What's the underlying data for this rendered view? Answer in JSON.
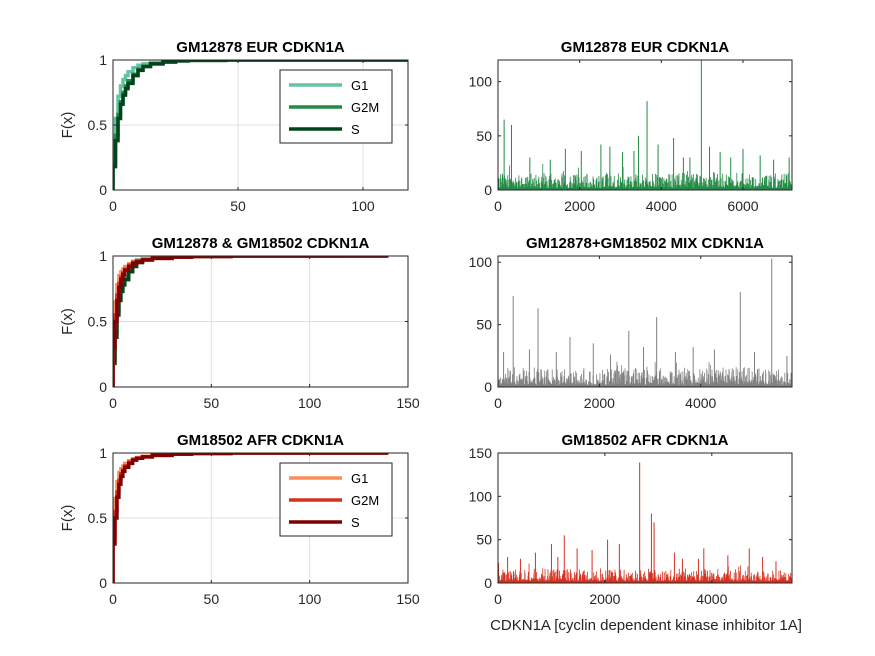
{
  "figure": {
    "xlabel_bottom_right": "CDKN1A [cyclin dependent kinase inhibitor 1A]"
  },
  "chart_data": [
    {
      "id": "cdf_eur",
      "type": "line",
      "subtype": "cdf",
      "title": "GM12878 EUR CDKN1A",
      "xlabel": "",
      "ylabel": "F(x)",
      "xlim": [
        0,
        118
      ],
      "ylim": [
        0,
        1
      ],
      "xticks": [
        "0",
        "50",
        "100"
      ],
      "yticks": [
        "0",
        "0.5",
        "1"
      ],
      "grid": true,
      "legend": "top-right",
      "series": [
        {
          "name": "G1",
          "color": "#66c2a4",
          "x": [
            0,
            1,
            2,
            3,
            4,
            5,
            6,
            8,
            10,
            12,
            15,
            20,
            25,
            30,
            40,
            118
          ],
          "y": [
            0.3,
            0.55,
            0.72,
            0.8,
            0.85,
            0.88,
            0.91,
            0.94,
            0.96,
            0.97,
            0.98,
            0.99,
            0.995,
            0.998,
            1.0,
            1.0
          ]
        },
        {
          "name": "G2M",
          "color": "#238b45",
          "x": [
            0,
            1,
            2,
            3,
            4,
            5,
            6,
            8,
            10,
            12,
            15,
            20,
            25,
            30,
            45,
            118
          ],
          "y": [
            0.2,
            0.42,
            0.58,
            0.68,
            0.75,
            0.8,
            0.84,
            0.89,
            0.93,
            0.95,
            0.97,
            0.985,
            0.993,
            0.997,
            1.0,
            1.0
          ]
        },
        {
          "name": "S",
          "color": "#00441b",
          "x": [
            0,
            1,
            2,
            3,
            4,
            5,
            6,
            8,
            10,
            12,
            15,
            20,
            25,
            30,
            45,
            118
          ],
          "y": [
            0.18,
            0.38,
            0.55,
            0.66,
            0.73,
            0.78,
            0.82,
            0.88,
            0.92,
            0.95,
            0.97,
            0.985,
            0.993,
            0.997,
            1.0,
            1.0
          ]
        }
      ]
    },
    {
      "id": "bar_eur",
      "type": "bar",
      "title": "GM12878 EUR CDKN1A",
      "xlim": [
        0,
        7200
      ],
      "ylim": [
        0,
        120
      ],
      "xticks": [
        "0",
        "2000",
        "4000",
        "6000"
      ],
      "yticks": [
        "0",
        "50",
        "100"
      ],
      "color": "#238b45",
      "n_cells": 7200,
      "peaks": [
        [
          150,
          65
        ],
        [
          330,
          60
        ],
        [
          780,
          30
        ],
        [
          1280,
          28
        ],
        [
          1650,
          38
        ],
        [
          2040,
          36
        ],
        [
          2520,
          42
        ],
        [
          2740,
          40
        ],
        [
          3050,
          35
        ],
        [
          3330,
          36
        ],
        [
          3440,
          50
        ],
        [
          3650,
          82
        ],
        [
          3920,
          42
        ],
        [
          4300,
          48
        ],
        [
          4540,
          30
        ],
        [
          4700,
          30
        ],
        [
          4980,
          120
        ],
        [
          5180,
          40
        ],
        [
          5440,
          35
        ],
        [
          5700,
          30
        ],
        [
          6000,
          38
        ],
        [
          6420,
          32
        ],
        [
          6750,
          28
        ],
        [
          7130,
          30
        ]
      ]
    },
    {
      "id": "cdf_mix",
      "type": "line",
      "subtype": "cdf",
      "title": "GM12878 & GM18502 CDKN1A",
      "xlabel": "",
      "ylabel": "F(x)",
      "xlim": [
        0,
        150
      ],
      "ylim": [
        0,
        1
      ],
      "xticks": [
        "0",
        "50",
        "100",
        "150"
      ],
      "yticks": [
        "0",
        "0.5",
        "1"
      ],
      "grid": true,
      "legend": "",
      "series": [
        {
          "color": "#66c2a4",
          "x": [
            0,
            1,
            2,
            3,
            4,
            5,
            6,
            8,
            10,
            12,
            15,
            20,
            25,
            30,
            40,
            118
          ],
          "y": [
            0.3,
            0.55,
            0.72,
            0.8,
            0.85,
            0.88,
            0.91,
            0.94,
            0.96,
            0.97,
            0.98,
            0.99,
            0.995,
            0.998,
            1.0,
            1.0
          ]
        },
        {
          "color": "#238b45",
          "x": [
            0,
            1,
            2,
            3,
            4,
            5,
            6,
            8,
            10,
            12,
            15,
            20,
            25,
            30,
            45,
            118
          ],
          "y": [
            0.2,
            0.42,
            0.58,
            0.68,
            0.75,
            0.8,
            0.84,
            0.89,
            0.93,
            0.95,
            0.97,
            0.985,
            0.993,
            0.997,
            1.0,
            1.0
          ]
        },
        {
          "color": "#00441b",
          "x": [
            0,
            1,
            2,
            3,
            4,
            5,
            6,
            8,
            10,
            12,
            15,
            20,
            25,
            30,
            45,
            118
          ],
          "y": [
            0.18,
            0.38,
            0.55,
            0.66,
            0.73,
            0.78,
            0.82,
            0.88,
            0.92,
            0.95,
            0.97,
            0.985,
            0.993,
            0.997,
            1.0,
            1.0
          ]
        },
        {
          "color": "#fc8d59",
          "x": [
            0,
            1,
            2,
            3,
            4,
            5,
            6,
            8,
            10,
            12,
            15,
            20,
            30,
            40,
            60,
            140
          ],
          "y": [
            0.45,
            0.65,
            0.78,
            0.85,
            0.88,
            0.9,
            0.92,
            0.94,
            0.955,
            0.965,
            0.975,
            0.985,
            0.993,
            0.997,
            1.0,
            1.0
          ]
        },
        {
          "color": "#d7301f",
          "x": [
            0,
            1,
            2,
            3,
            4,
            5,
            6,
            8,
            10,
            12,
            15,
            20,
            30,
            40,
            60,
            140
          ],
          "y": [
            0.35,
            0.55,
            0.7,
            0.79,
            0.84,
            0.87,
            0.9,
            0.93,
            0.95,
            0.96,
            0.97,
            0.982,
            0.991,
            0.996,
            1.0,
            1.0
          ]
        },
        {
          "color": "#7f0000",
          "x": [
            0,
            1,
            2,
            3,
            4,
            5,
            6,
            8,
            10,
            12,
            15,
            20,
            30,
            40,
            60,
            140
          ],
          "y": [
            0.3,
            0.5,
            0.66,
            0.76,
            0.82,
            0.86,
            0.89,
            0.92,
            0.945,
            0.96,
            0.97,
            0.982,
            0.991,
            0.996,
            1.0,
            1.0
          ]
        }
      ]
    },
    {
      "id": "bar_mix",
      "type": "bar",
      "title": "GM12878+GM18502 MIX CDKN1A",
      "xlim": [
        0,
        5800
      ],
      "ylim": [
        0,
        105
      ],
      "xticks": [
        "0",
        "2000",
        "4000"
      ],
      "yticks": [
        "0",
        "50",
        "100"
      ],
      "color": "#808080",
      "n_cells": 5800,
      "peaks": [
        [
          110,
          28
        ],
        [
          300,
          73
        ],
        [
          620,
          30
        ],
        [
          790,
          63
        ],
        [
          1150,
          28
        ],
        [
          1420,
          40
        ],
        [
          1880,
          35
        ],
        [
          2220,
          26
        ],
        [
          2580,
          45
        ],
        [
          2870,
          32
        ],
        [
          3130,
          56
        ],
        [
          3500,
          28
        ],
        [
          3850,
          32
        ],
        [
          4270,
          30
        ],
        [
          4780,
          76
        ],
        [
          5060,
          28
        ],
        [
          5400,
          103
        ],
        [
          5700,
          25
        ]
      ]
    },
    {
      "id": "cdf_afr",
      "type": "line",
      "subtype": "cdf",
      "title": "GM18502 AFR CDKN1A",
      "xlabel": "",
      "ylabel": "F(x)",
      "xlim": [
        0,
        150
      ],
      "ylim": [
        0,
        1
      ],
      "xticks": [
        "0",
        "50",
        "100",
        "150"
      ],
      "yticks": [
        "0",
        "0.5",
        "1"
      ],
      "grid": true,
      "legend": "top-right",
      "series": [
        {
          "name": "G1",
          "color": "#fc8d59",
          "x": [
            0,
            1,
            2,
            3,
            4,
            5,
            6,
            8,
            10,
            12,
            15,
            20,
            30,
            40,
            60,
            140
          ],
          "y": [
            0.45,
            0.65,
            0.78,
            0.85,
            0.88,
            0.9,
            0.92,
            0.94,
            0.955,
            0.965,
            0.975,
            0.985,
            0.993,
            0.997,
            1.0,
            1.0
          ]
        },
        {
          "name": "G2M",
          "color": "#d7301f",
          "x": [
            0,
            1,
            2,
            3,
            4,
            5,
            6,
            8,
            10,
            12,
            15,
            20,
            30,
            40,
            60,
            140
          ],
          "y": [
            0.35,
            0.55,
            0.7,
            0.79,
            0.84,
            0.87,
            0.9,
            0.93,
            0.95,
            0.96,
            0.97,
            0.982,
            0.991,
            0.996,
            1.0,
            1.0
          ]
        },
        {
          "name": "S",
          "color": "#7f0000",
          "x": [
            0,
            1,
            2,
            3,
            4,
            5,
            6,
            8,
            10,
            12,
            15,
            20,
            30,
            40,
            60,
            140
          ],
          "y": [
            0.3,
            0.5,
            0.66,
            0.76,
            0.82,
            0.86,
            0.89,
            0.92,
            0.945,
            0.96,
            0.97,
            0.982,
            0.991,
            0.996,
            1.0,
            1.0
          ]
        }
      ]
    },
    {
      "id": "bar_afr",
      "type": "bar",
      "title": "GM18502 AFR CDKN1A",
      "xlim": [
        0,
        5500
      ],
      "ylim": [
        0,
        150
      ],
      "xticks": [
        "0",
        "2000",
        "4000"
      ],
      "yticks": [
        "0",
        "50",
        "100",
        "150"
      ],
      "color": "#d7301f",
      "n_cells": 5500,
      "peaks": [
        [
          180,
          30
        ],
        [
          420,
          28
        ],
        [
          700,
          35
        ],
        [
          1000,
          45
        ],
        [
          1120,
          30
        ],
        [
          1240,
          55
        ],
        [
          1480,
          40
        ],
        [
          1760,
          38
        ],
        [
          2050,
          50
        ],
        [
          2270,
          45
        ],
        [
          2650,
          139
        ],
        [
          2870,
          80
        ],
        [
          2920,
          70
        ],
        [
          3300,
          35
        ],
        [
          3450,
          28
        ],
        [
          3750,
          28
        ],
        [
          3850,
          40
        ],
        [
          4300,
          32
        ],
        [
          4700,
          40
        ],
        [
          4950,
          30
        ],
        [
          5200,
          25
        ]
      ]
    }
  ]
}
